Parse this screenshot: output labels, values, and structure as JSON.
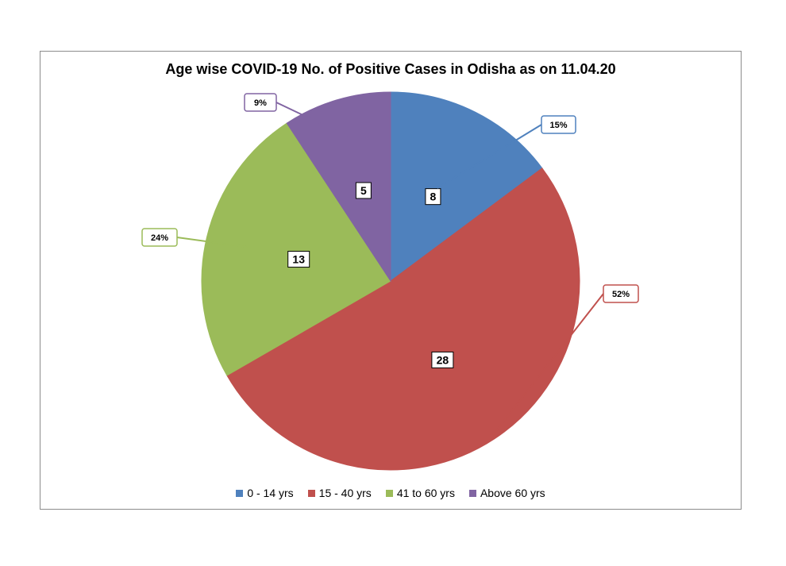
{
  "chart_data": {
    "type": "pie",
    "title": "Age wise COVID-19 No. of Positive Cases in Odisha as on 11.04.20",
    "categories": [
      "0 - 14 yrs",
      "15 - 40 yrs",
      "41 to 60 yrs",
      "Above 60 yrs"
    ],
    "values": [
      8,
      28,
      13,
      5
    ],
    "percent_labels": [
      "15%",
      "52%",
      "24%",
      "9%"
    ],
    "colors": [
      "#4f81bd",
      "#c0504d",
      "#9bbb59",
      "#8064a2"
    ],
    "legend": "bottom"
  }
}
